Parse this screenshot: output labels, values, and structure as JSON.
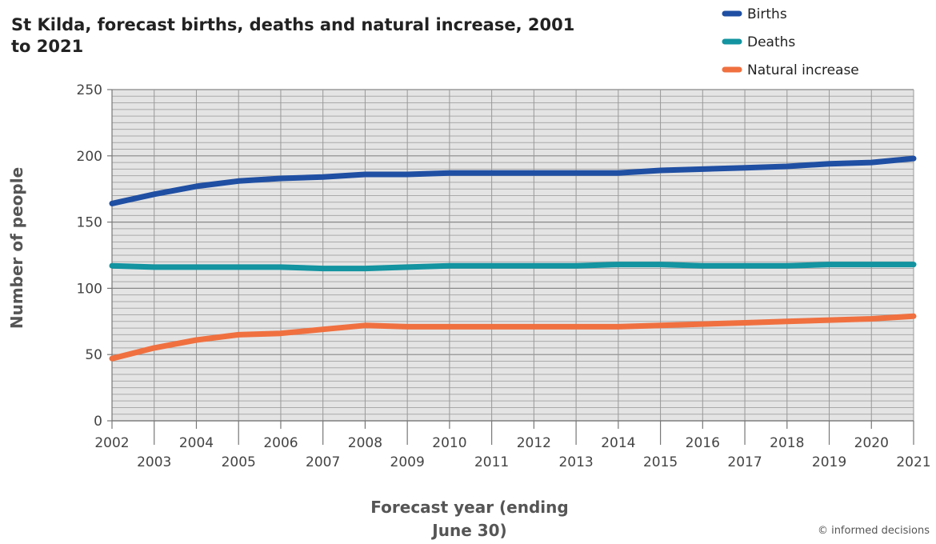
{
  "chart_data": {
    "type": "line",
    "title_lines": [
      "St Kilda, forecast births, deaths and natural increase, 2001",
      "to 2021"
    ],
    "xlabel_lines": [
      "Forecast year (ending",
      "June 30)"
    ],
    "ylabel": "Number of people",
    "credit": "© informed decisions",
    "ylim": [
      0,
      250
    ],
    "y_ticks": [
      0,
      50,
      100,
      150,
      200,
      250
    ],
    "grid": true,
    "legend_position": "top-right",
    "categories": [
      "2002",
      "2003",
      "2004",
      "2005",
      "2006",
      "2007",
      "2008",
      "2009",
      "2010",
      "2011",
      "2012",
      "2013",
      "2014",
      "2015",
      "2016",
      "2017",
      "2018",
      "2019",
      "2020",
      "2021"
    ],
    "series": [
      {
        "name": "Births",
        "color": "#1f4fa3",
        "values": [
          164,
          171,
          177,
          181,
          183,
          184,
          186,
          186,
          187,
          187,
          187,
          187,
          187,
          189,
          190,
          191,
          192,
          194,
          195,
          198
        ]
      },
      {
        "name": "Deaths",
        "color": "#1394a0",
        "values": [
          117,
          116,
          116,
          116,
          116,
          115,
          115,
          116,
          117,
          117,
          117,
          117,
          118,
          118,
          117,
          117,
          117,
          118,
          118,
          118
        ]
      },
      {
        "name": "Natural increase",
        "color": "#f07040",
        "values": [
          47,
          55,
          61,
          65,
          66,
          69,
          72,
          71,
          71,
          71,
          71,
          71,
          71,
          72,
          73,
          74,
          75,
          76,
          77,
          79
        ]
      }
    ]
  }
}
